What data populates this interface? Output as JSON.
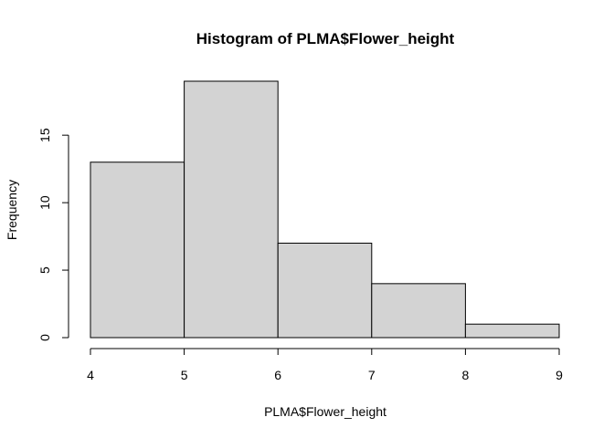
{
  "chart_data": {
    "type": "bar",
    "title": "Histogram of PLMA$Flower_height",
    "xlabel": "PLMA$Flower_height",
    "ylabel": "Frequency",
    "bins": [
      {
        "from": 4,
        "to": 5,
        "count": 13
      },
      {
        "from": 5,
        "to": 6,
        "count": 19
      },
      {
        "from": 6,
        "to": 7,
        "count": 7
      },
      {
        "from": 7,
        "to": 8,
        "count": 4
      },
      {
        "from": 8,
        "to": 9,
        "count": 1
      }
    ],
    "xlim": [
      4,
      9
    ],
    "ylim": [
      0,
      19
    ],
    "xticks": [
      "4",
      "5",
      "6",
      "7",
      "8",
      "9"
    ],
    "yticks": [
      "0",
      "5",
      "10",
      "15"
    ],
    "bar_color": "#d3d3d3",
    "grid": false
  }
}
